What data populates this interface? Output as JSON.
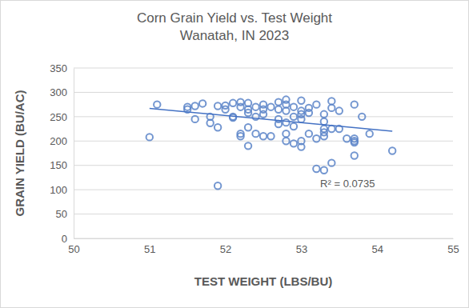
{
  "chart_data": {
    "type": "scatter",
    "title": "Corn Grain Yield vs. Test Weight",
    "subtitle": "Wanatah, IN 2023",
    "x_label": "TEST WEIGHT (LBS/BU)",
    "y_label": "GRAIN YIELD (BU/AC)",
    "xlim": [
      50,
      55
    ],
    "xticks": [
      50,
      51,
      52,
      53,
      54,
      55
    ],
    "ylim": [
      0,
      350
    ],
    "yticks": [
      0,
      50,
      100,
      150,
      200,
      250,
      300,
      350
    ],
    "grid": true,
    "series": [
      {
        "type": "scatter",
        "marker": "open-circle",
        "color": "#5b84c8",
        "x": [
          51.0,
          51.1,
          51.5,
          51.5,
          51.6,
          51.6,
          51.7,
          51.8,
          51.8,
          51.9,
          51.9,
          51.9,
          52.0,
          52.0,
          52.1,
          52.1,
          52.1,
          52.2,
          52.2,
          52.2,
          52.2,
          52.3,
          52.3,
          52.3,
          52.3,
          52.3,
          52.4,
          52.4,
          52.4,
          52.5,
          52.5,
          52.5,
          52.5,
          52.6,
          52.6,
          52.7,
          52.7,
          52.7,
          52.7,
          52.8,
          52.8,
          52.8,
          52.8,
          52.8,
          52.8,
          52.9,
          52.9,
          52.9,
          52.9,
          53.0,
          53.0,
          53.0,
          53.0,
          53.0,
          53.0,
          53.1,
          53.1,
          53.1,
          53.2,
          53.2,
          53.2,
          53.3,
          53.3,
          53.3,
          53.3,
          53.3,
          53.3,
          53.4,
          53.4,
          53.4,
          53.4,
          53.5,
          53.5,
          53.6,
          53.7,
          53.7,
          53.7,
          53.7,
          53.7,
          53.8,
          53.9,
          54.2
        ],
        "values": [
          208,
          275,
          270,
          265,
          272,
          245,
          277,
          250,
          237,
          228,
          272,
          108,
          265,
          273,
          278,
          250,
          248,
          270,
          280,
          215,
          210,
          278,
          265,
          258,
          228,
          190,
          215,
          270,
          250,
          275,
          265,
          255,
          210,
          270,
          210,
          280,
          265,
          245,
          235,
          285,
          275,
          262,
          238,
          200,
          215,
          270,
          250,
          230,
          195,
          283,
          262,
          255,
          245,
          200,
          188,
          268,
          258,
          215,
          275,
          205,
          143,
          255,
          240,
          225,
          218,
          210,
          140,
          282,
          268,
          225,
          155,
          262,
          225,
          205,
          275,
          205,
          200,
          197,
          170,
          250,
          215,
          180
        ]
      },
      {
        "type": "line",
        "line_style": "solid",
        "color": "#4472c4",
        "x": [
          51.0,
          54.2
        ],
        "values": [
          267,
          220
        ]
      }
    ],
    "annotations": [
      {
        "text": "R² = 0.0735",
        "x": 53.25,
        "y": 105
      }
    ]
  }
}
